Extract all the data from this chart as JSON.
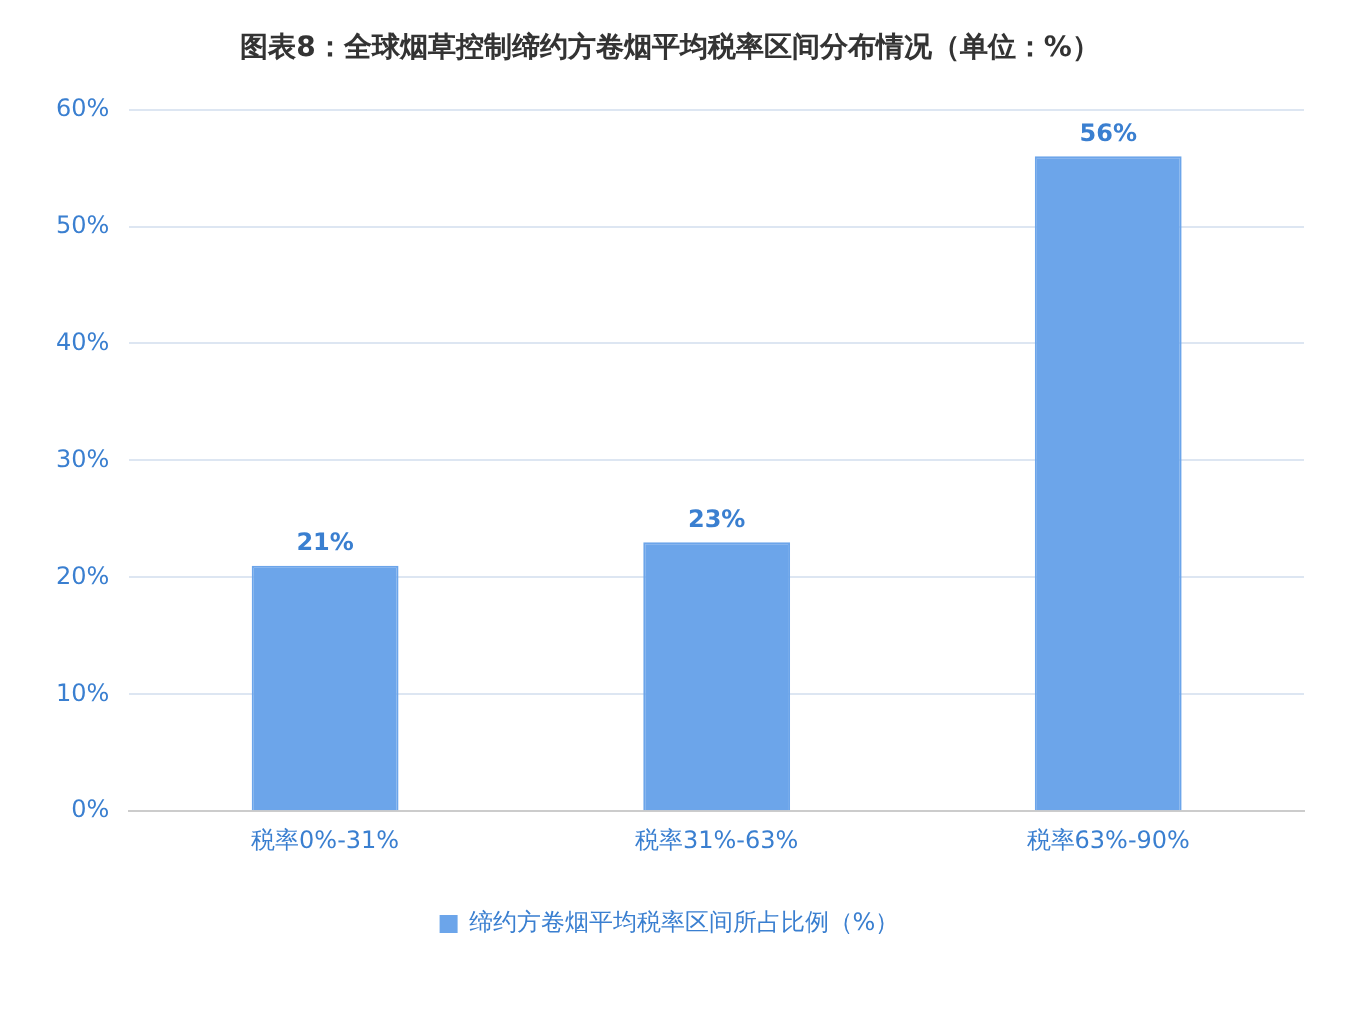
{
  "chart_data": {
    "type": "bar",
    "title": "图表8：全球烟草控制缔约方卷烟平均税率区间分布情况（单位：%）",
    "categories": [
      "税率0%-31%",
      "税率31%-63%",
      "税率63%-90%"
    ],
    "series": [
      {
        "name": "缔约方卷烟平均税率区间所占比例（%）",
        "color": "#6ca5ea",
        "values": [
          21,
          23,
          56
        ],
        "value_labels": [
          "21%",
          "23%",
          "56%"
        ]
      }
    ],
    "ylim": [
      0,
      60
    ],
    "yticks": [
      {
        "value": 0,
        "label": "0%"
      },
      {
        "value": 10,
        "label": "10%"
      },
      {
        "value": 20,
        "label": "20%"
      },
      {
        "value": 30,
        "label": "30%"
      },
      {
        "value": 40,
        "label": "40%"
      },
      {
        "value": 50,
        "label": "50%"
      },
      {
        "value": 60,
        "label": "60%"
      }
    ],
    "grid": "y",
    "legend": "bottom"
  }
}
